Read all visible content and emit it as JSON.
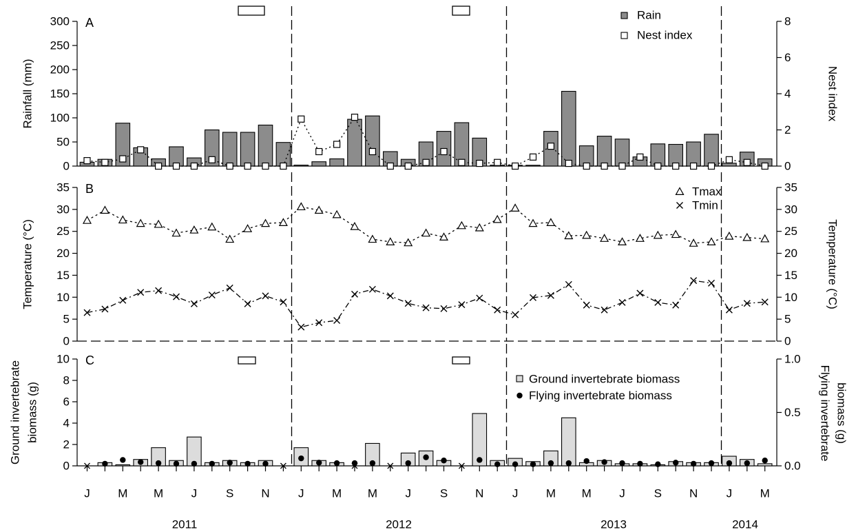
{
  "chart_data": [
    {
      "panel": "A",
      "type": "bar",
      "ylabel": "Rainfall (mm)",
      "y2label": "Nest index",
      "ylim": [
        0,
        300
      ],
      "y2lim": [
        0,
        8
      ],
      "yticks": [
        0,
        50,
        100,
        150,
        200,
        250,
        300
      ],
      "y2ticks": [
        0,
        2,
        4,
        6,
        8
      ],
      "legend": {
        "position": "top-right",
        "entries": [
          "Rain",
          "Nest index"
        ]
      },
      "series": [
        {
          "name": "Rain",
          "type": "bar",
          "color": "#8c8c8c",
          "values": [
            8,
            14,
            89,
            38,
            15,
            40,
            17,
            75,
            70,
            70,
            85,
            49,
            2,
            9,
            15,
            97,
            104,
            30,
            14,
            50,
            72,
            90,
            58,
            2,
            0,
            0,
            72,
            155,
            42,
            62,
            56,
            19,
            46,
            45,
            50,
            66,
            6,
            29,
            15
          ]
        },
        {
          "name": "Nest index",
          "type": "line-points",
          "marker": "open-square",
          "values": [
            0.3,
            0.2,
            0.4,
            0.9,
            0.0,
            0.0,
            0.0,
            0.35,
            0.0,
            0.0,
            0.0,
            0.0,
            2.6,
            0.8,
            1.2,
            2.7,
            0.8,
            0.0,
            0.0,
            0.2,
            0.8,
            0.2,
            0.15,
            0.2,
            0.0,
            0.5,
            1.1,
            0.15,
            0.0,
            0.0,
            0.0,
            0.5,
            0.0,
            0.0,
            0.0,
            0.0,
            0.35,
            0.2,
            0.0
          ]
        }
      ]
    },
    {
      "panel": "B",
      "type": "line",
      "ylabel": "Temperature (°C)",
      "y2label": "Temperature (°C)",
      "ylim": [
        0,
        35
      ],
      "yticks": [
        0,
        5,
        10,
        15,
        20,
        25,
        30,
        35
      ],
      "legend": {
        "position": "top-right",
        "entries": [
          "Tmax",
          "Tmin"
        ]
      },
      "series": [
        {
          "name": "Tmax",
          "marker": "open-triangle",
          "values": [
            27.5,
            29.8,
            27.6,
            26.8,
            26.6,
            24.6,
            25.3,
            26.0,
            23.2,
            25.6,
            26.8,
            27.0,
            30.6,
            29.8,
            28.8,
            26.1,
            23.2,
            22.6,
            22.4,
            24.6,
            23.7,
            26.3,
            25.8,
            27.7,
            30.3,
            26.8,
            27.0,
            24.0,
            24.1,
            23.4,
            22.6,
            23.4,
            24.1,
            24.3,
            22.3,
            22.6,
            23.9,
            23.6,
            23.3
          ]
        },
        {
          "name": "Tmin",
          "marker": "cross",
          "values": [
            6.5,
            7.3,
            9.3,
            11.1,
            11.5,
            10.1,
            8.5,
            10.5,
            12.1,
            8.5,
            10.3,
            8.9,
            3.2,
            4.2,
            4.7,
            10.7,
            11.8,
            10.3,
            8.6,
            7.6,
            7.4,
            8.3,
            9.8,
            7.1,
            6.0,
            9.9,
            10.4,
            12.9,
            8.2,
            7.1,
            8.8,
            10.9,
            8.8,
            8.2,
            13.8,
            13.2,
            7.1,
            8.6,
            8.9
          ]
        }
      ]
    },
    {
      "panel": "C",
      "type": "bar",
      "ylabel": "Ground invertebrate biomass (g)",
      "y2label": "Flying invertebrate biomass (g)",
      "ylim": [
        0,
        10
      ],
      "y2lim": [
        0,
        1.0
      ],
      "yticks": [
        0,
        2,
        4,
        6,
        8,
        10
      ],
      "y2ticks": [
        0.0,
        0.5,
        1.0
      ],
      "legend": {
        "position": "top-right",
        "entries": [
          "Ground invertebrate biomass",
          "Flying invertebrate biomass"
        ]
      },
      "series": [
        {
          "name": "Ground invertebrate biomass",
          "type": "bar",
          "color": "#dcdcdc",
          "values": [
            0,
            0.3,
            0.1,
            0.6,
            1.7,
            0.5,
            2.7,
            0.3,
            0.5,
            0.3,
            0.5,
            0,
            1.7,
            0.5,
            0.3,
            0,
            2.1,
            0,
            1.2,
            1.4,
            0.5,
            0,
            4.9,
            0.5,
            0.7,
            0.4,
            1.4,
            4.5,
            0.3,
            0.5,
            0.2,
            0.2,
            0.1,
            0.4,
            0.3,
            0.3,
            0.9,
            0.6,
            0.2
          ]
        },
        {
          "name": "Flying invertebrate biomass",
          "type": "points",
          "marker": "filled-circle",
          "values": [
            null,
            0.02,
            0.055,
            0.035,
            0.025,
            0.02,
            0.02,
            0.02,
            0.03,
            0.02,
            0.02,
            null,
            0.07,
            0.03,
            0.025,
            0.025,
            0.025,
            null,
            0.025,
            0.08,
            0.05,
            null,
            0.055,
            0.015,
            0.015,
            0.015,
            0.025,
            0.025,
            0.045,
            0.035,
            0.025,
            0.02,
            0.015,
            0.03,
            0.02,
            0.025,
            0.025,
            0.025,
            0.05
          ]
        }
      ]
    }
  ],
  "x_axis": {
    "month_labels": [
      "J",
      "M",
      "M",
      "J",
      "S",
      "N",
      "J",
      "M",
      "M",
      "J",
      "S",
      "N",
      "J",
      "M",
      "M",
      "J",
      "S",
      "N",
      "J",
      "M"
    ],
    "year_labels": [
      "2011",
      "2012",
      "2013",
      "2014"
    ]
  },
  "panel_labels": [
    "A",
    "B",
    "C"
  ]
}
